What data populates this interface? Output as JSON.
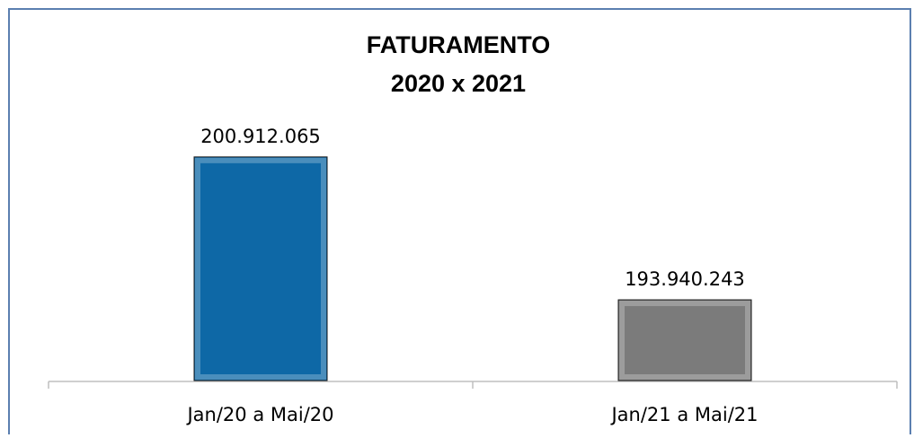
{
  "chart_data": {
    "type": "bar",
    "title": "FATURAMENTO",
    "subtitle": "2020 x 2021",
    "categories": [
      "Jan/20 a Mai/20",
      "Jan/21 a Mai/21"
    ],
    "values": [
      200912065,
      193940243
    ],
    "value_labels": [
      "200.912.065",
      "193.940.243"
    ],
    "colors": [
      "#0e68a6",
      "#7b7b7b"
    ],
    "ylim": [
      190000000,
      202000000
    ]
  }
}
